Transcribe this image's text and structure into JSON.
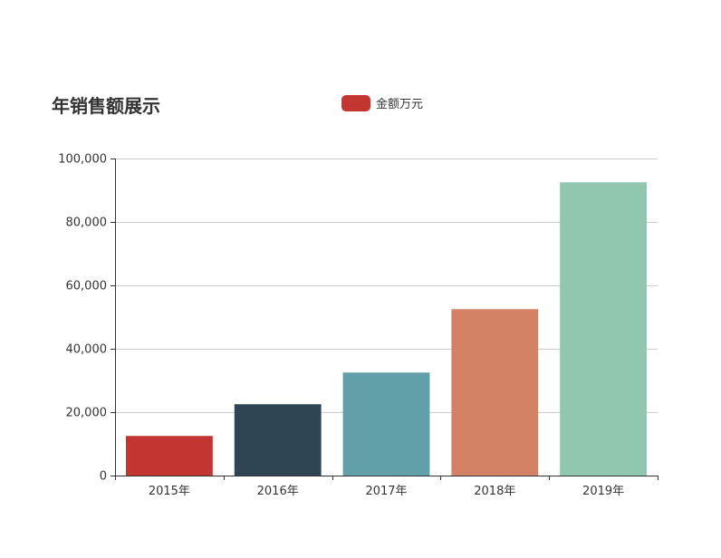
{
  "chart_data": {
    "type": "bar",
    "title": "年销售额展示",
    "legend": {
      "entries": [
        "金额万元"
      ],
      "placement": "top-center"
    },
    "categories": [
      "2015年",
      "2016年",
      "2017年",
      "2018年",
      "2019年"
    ],
    "series": [
      {
        "name": "金额万元",
        "values": [
          12500,
          22500,
          32500,
          52500,
          92500
        ]
      }
    ],
    "bar_colors": [
      "#c23531",
      "#2f4554",
      "#61a0a8",
      "#d48265",
      "#91c7ae"
    ],
    "ylim": [
      0,
      100000
    ],
    "yticks": [
      0,
      20000,
      40000,
      60000,
      80000,
      100000
    ],
    "ytick_labels": [
      "0",
      "20,000",
      "40,000",
      "60,000",
      "80,000",
      "100,000"
    ],
    "grid": true,
    "xlabel": "",
    "ylabel": ""
  }
}
